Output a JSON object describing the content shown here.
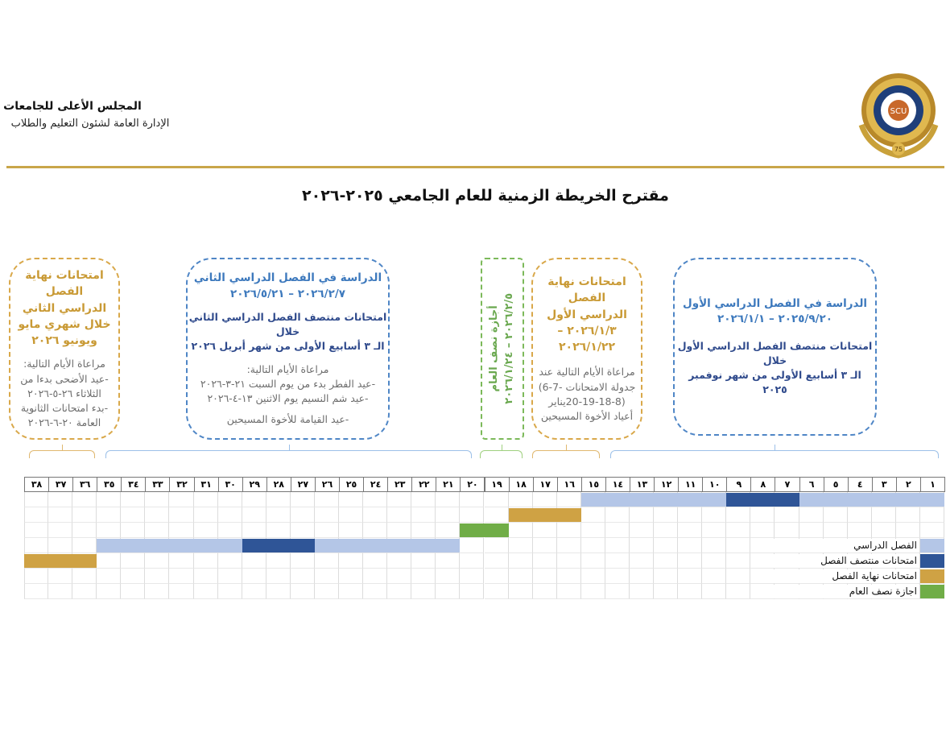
{
  "header": {
    "org_name": "المجلس الأعلى للجامعات",
    "department": "الإدارة العامة لشئون التعليم والطلاب",
    "logo_text": "DIAMOND JUBILEE 1950-2025 SCU 75"
  },
  "title": "مقترح الخريطة الزمنية للعام الجامعي ٢٠٢٥-٢٠٢٦",
  "boxes": {
    "first_semester": {
      "line1": "الدراسة في الفصل الدراسي الأول",
      "line2": "٢٠٢٥/٩/٢٠ – ٢٠٢٦/١/١",
      "midterm1": "امتحانات منتصف الفصل الدراسي الأول خلال",
      "midterm2": "الـ ٣ أسابيع الأولى من شهر نوفمبر ٢٠٢٥"
    },
    "first_finals": {
      "line1": "امتحانات نهاية الفصل",
      "line2": "الدراسي الأول",
      "line3": "٢٠٢٦/١/٣ –",
      "line4": "٢٠٢٦/١/٢٢",
      "note1": "مراعاة الأيام التالية عند",
      "note2": "جدولة الامتحانات -7-6)",
      "note3": "(20-19-18-8يناير",
      "note4": "أعياد الأخوة المسيحين"
    },
    "midyear": {
      "line1": "أجازة نصف العام",
      "line2": "٢٠٢٦/٢/٥ – ٢٠٢٦/١/٢٤"
    },
    "second_semester": {
      "line1": "الدراسة في الفصل الدراسي الثاني",
      "line2": "٢٠٢٦/٢/٧ – ٢٠٢٦/٥/٢١",
      "midterm1": "امتحانات منتصف الفصل الدراسي الثاني خلال",
      "midterm2": "الـ ٣ أسابيع الأولى من شهر أبريل ٢٠٢٦",
      "note1": "مراعاة الأيام التالية:",
      "note2": "-عيد الفطر بدء من يوم السبت ٢١-٣-٢٠٢٦",
      "note3": "-عيد شم النسيم يوم الاثنين ١٣-٤-٢٠٢٦",
      "note4": "-عيد القيامة للأخوة المسيحين"
    },
    "second_finals": {
      "line1": "امتحانات نهاية الفصل",
      "line2": "الدراسي الثاني",
      "line3": "خلال شهري مايو",
      "line4": "ويونيو ٢٠٢٦",
      "note1": "مراعاة الأيام التالية:",
      "note2": "-عيد الأضحى بدءا من",
      "note3": "الثلاثاء ٢٦-٥-٢٠٢٦",
      "note4": "-بدء امتحانات الثانوية",
      "note5": "العامة ٢٠-٦-٢٠٢٦"
    }
  },
  "weeks": [
    "١",
    "٢",
    "٣",
    "٤",
    "٥",
    "٦",
    "٧",
    "٨",
    "٩",
    "١٠",
    "١١",
    "١٢",
    "١٣",
    "١٤",
    "١٥",
    "١٦",
    "١٧",
    "١٨",
    "١٩",
    "٢٠",
    "٢١",
    "٢٢",
    "٢٣",
    "٢٤",
    "٢٥",
    "٢٦",
    "٢٧",
    "٢٨",
    "٢٩",
    "٣٠",
    "٣١",
    "٣٢",
    "٣٣",
    "٣٤",
    "٣٥",
    "٣٦",
    "٣٧",
    "٣٨"
  ],
  "colors": {
    "study": "#b4c6e7",
    "midterm": "#2f5597",
    "finals": "#cfa244",
    "vacation": "#70ad47"
  },
  "schedule": [
    {
      "row": 1,
      "from": 1,
      "to": 6,
      "type": "study"
    },
    {
      "row": 1,
      "from": 7,
      "to": 9,
      "type": "midterm"
    },
    {
      "row": 1,
      "from": 10,
      "to": 15,
      "type": "study"
    },
    {
      "row": 2,
      "from": 16,
      "to": 18,
      "type": "finals"
    },
    {
      "row": 3,
      "from": 19,
      "to": 20,
      "type": "vacation"
    },
    {
      "row": 4,
      "from": 21,
      "to": 26,
      "type": "study"
    },
    {
      "row": 4,
      "from": 27,
      "to": 29,
      "type": "midterm"
    },
    {
      "row": 4,
      "from": 30,
      "to": 35,
      "type": "study"
    },
    {
      "row": 5,
      "from": 36,
      "to": 38,
      "type": "finals"
    }
  ],
  "legend": [
    {
      "type": "study",
      "label": "الفصل الدراسي"
    },
    {
      "type": "midterm",
      "label": "امتحانات منتصف الفصل"
    },
    {
      "type": "finals",
      "label": "امتحانات نهاية الفصل"
    },
    {
      "type": "vacation",
      "label": "اجازة نصف العام"
    }
  ]
}
